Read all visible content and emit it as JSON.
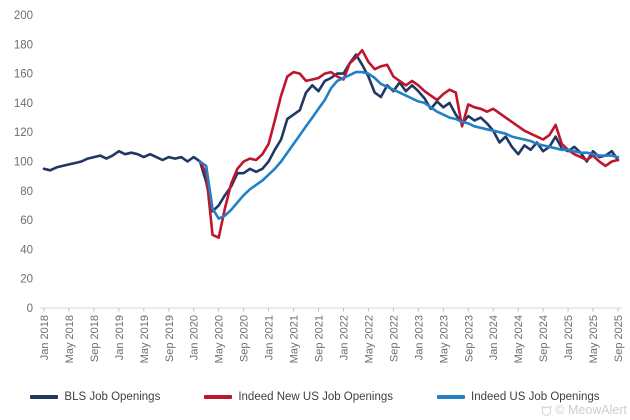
{
  "watermark": {
    "text": "© MeowAlert"
  },
  "colors": {
    "axis_line": "#D9D9D9",
    "tick_mark": "#BFBFBF",
    "axis_text": "#6E6E6E",
    "legend_text": "#404040",
    "background": "#FFFFFF"
  },
  "chart_data": {
    "type": "line",
    "title": "",
    "xlabel": "",
    "ylabel": "",
    "ylim": [
      0,
      200
    ],
    "y_ticks": [
      0,
      20,
      40,
      60,
      80,
      100,
      120,
      140,
      160,
      180,
      200
    ],
    "grid": false,
    "legend_position": "bottom",
    "x_unit": "month",
    "x_range": [
      "Jan 2018",
      "Sep 2025"
    ],
    "x_tick_labels": [
      "Jan 2018",
      "May 2018",
      "Sep 2018",
      "Jan 2019",
      "May 2019",
      "Sep 2019",
      "Jan 2020",
      "May 2020",
      "Sep 2020",
      "Jan 2021",
      "May 2021",
      "Sep 2021",
      "Jan 2022",
      "May 2022",
      "Sep 2022",
      "Jan 2023",
      "May 2023",
      "Sep 2023",
      "Jan 2024",
      "May 2024",
      "Sep 2024",
      "Jan 2025",
      "May 2025",
      "Sep 2025"
    ],
    "x_tick_interval_months": 4,
    "series": [
      {
        "name": "BLS Job Openings",
        "color": "#1F3864",
        "start_month": "Jan 2018",
        "start_index": 0,
        "values": [
          95,
          94,
          96,
          97,
          98,
          99,
          100,
          102,
          103,
          104,
          102,
          104,
          107,
          105,
          106,
          105,
          103,
          105,
          103,
          101,
          103,
          102,
          103,
          100,
          103,
          100,
          86,
          66,
          70,
          77,
          83,
          92,
          92,
          95,
          93,
          95,
          100,
          108,
          115,
          129,
          132,
          135,
          147,
          152,
          148,
          155,
          157,
          160,
          160,
          167,
          173,
          166,
          158,
          147,
          144,
          152,
          148,
          154,
          148,
          152,
          148,
          143,
          136,
          141,
          137,
          140,
          132,
          126,
          131,
          128,
          130,
          126,
          121,
          113,
          117,
          110,
          105,
          111,
          108,
          113,
          107,
          110,
          117,
          109,
          107,
          110,
          106,
          100,
          107,
          103,
          104,
          107,
          101
        ]
      },
      {
        "name": "Indeed New US Job Openings",
        "color": "#C0152F",
        "start_month": "Feb 2020",
        "start_index": 25,
        "values": [
          100,
          92,
          50,
          48,
          68,
          85,
          95,
          100,
          102,
          101,
          105,
          112,
          128,
          145,
          158,
          161,
          160,
          155,
          156,
          157,
          160,
          161,
          158,
          156,
          167,
          171,
          176,
          168,
          163,
          165,
          166,
          158,
          155,
          152,
          155,
          152,
          148,
          145,
          142,
          146,
          149,
          147,
          124,
          139,
          137,
          136,
          134,
          136,
          133,
          130,
          127,
          124,
          121,
          119,
          117,
          115,
          118,
          125,
          112,
          108,
          105,
          103,
          101,
          104,
          100,
          97,
          100,
          101
        ]
      },
      {
        "name": "Indeed US Job Openings",
        "color": "#2380C4",
        "start_month": "Feb 2020",
        "start_index": 25,
        "values": [
          100,
          97,
          68,
          61,
          63,
          67,
          72,
          77,
          81,
          84,
          87,
          91,
          95,
          100,
          106,
          112,
          118,
          124,
          130,
          136,
          142,
          150,
          155,
          157,
          159,
          161,
          161,
          160,
          157,
          153,
          151,
          149,
          147,
          145,
          143,
          141,
          140,
          137,
          134,
          132,
          130,
          129,
          127,
          126,
          124,
          123,
          122,
          121,
          120,
          119,
          117,
          116,
          115,
          114,
          112,
          111,
          110,
          109,
          108,
          108,
          107,
          106,
          106,
          105,
          104,
          104,
          104,
          103
        ]
      }
    ]
  }
}
